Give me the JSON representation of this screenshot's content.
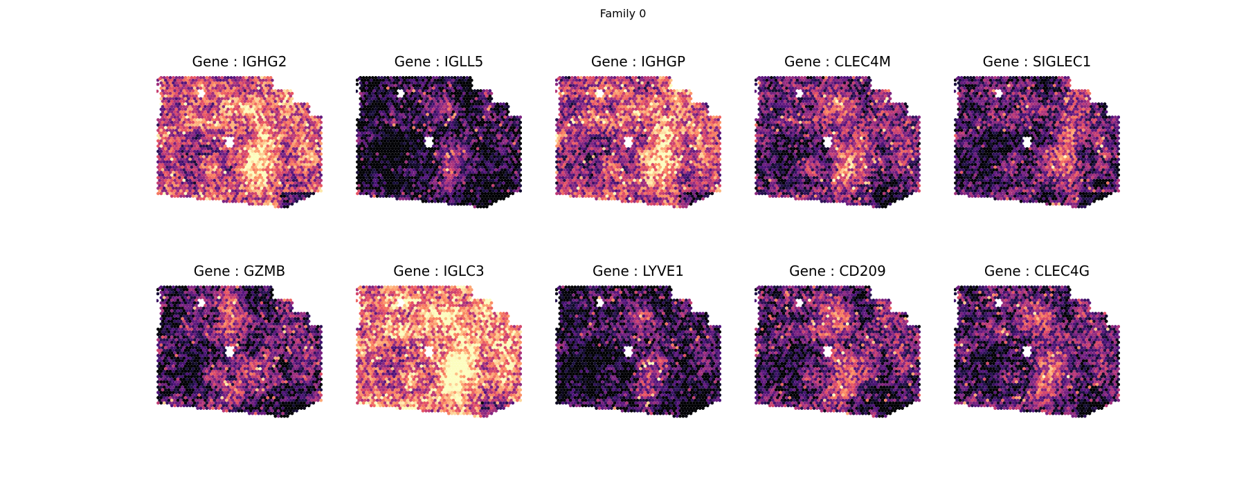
{
  "figure": {
    "title": "Family 0"
  },
  "chart_data": {
    "type": "heatmap",
    "colormap": "magma",
    "layout": "2 rows x 5 columns spatial transcriptomics spot maps",
    "panels": [
      {
        "title": "Gene : IGHG2",
        "level": 0.55,
        "hotspot_x": 0.62,
        "trait": "high"
      },
      {
        "title": "Gene : IGLL5",
        "level": 0.12,
        "hotspot_x": 0.55,
        "trait": "low"
      },
      {
        "title": "Gene : IGHGP",
        "level": 0.5,
        "hotspot_x": 0.65,
        "trait": "high"
      },
      {
        "title": "Gene : CLEC4M",
        "level": 0.28,
        "hotspot_x": 0.55,
        "trait": "mid"
      },
      {
        "title": "Gene : SIGLEC1",
        "level": 0.22,
        "hotspot_x": 0.7,
        "trait": "mid"
      },
      {
        "title": "Gene : GZMB",
        "level": 0.2,
        "hotspot_x": 0.45,
        "trait": "mid"
      },
      {
        "title": "Gene : IGLC3",
        "level": 0.68,
        "hotspot_x": 0.6,
        "trait": "high"
      },
      {
        "title": "Gene : LYVE1",
        "level": 0.15,
        "hotspot_x": 0.55,
        "trait": "low"
      },
      {
        "title": "Gene : CD209",
        "level": 0.24,
        "hotspot_x": 0.5,
        "trait": "mid"
      },
      {
        "title": "Gene : CLEC4G",
        "level": 0.22,
        "hotspot_x": 0.55,
        "trait": "mid"
      }
    ]
  }
}
